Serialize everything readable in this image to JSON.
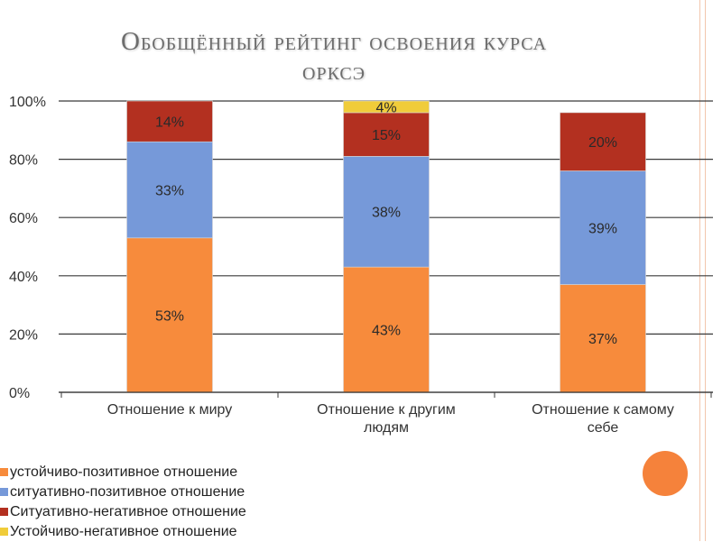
{
  "title": {
    "line1": "Обобщённый рейтинг освоения курса",
    "line2": "ОРКСЭ"
  },
  "colors": {
    "accent_circle": "#f5823b",
    "frame": "#f2c6ad"
  },
  "chart_data": {
    "type": "bar",
    "stacked": true,
    "title": "Обобщённый рейтинг освоения курса ОРКСЭ",
    "categories": [
      [
        "Отношение к миру"
      ],
      [
        "Отношение к другим",
        "людям"
      ],
      [
        "Отношение к самому",
        "себе"
      ]
    ],
    "series": [
      {
        "name": "устойчиво-позитивное отношение",
        "color": "#f78b3c",
        "values": [
          53,
          43,
          37
        ],
        "labels": [
          "53%",
          "43%",
          "37%"
        ]
      },
      {
        "name": "ситуативно-позитивное отношение",
        "color": "#7699d9",
        "values": [
          33,
          38,
          39
        ],
        "labels": [
          "33%",
          "38%",
          "39%"
        ]
      },
      {
        "name": "Ситуативно-негативное отношение",
        "color": "#b33020",
        "values": [
          14,
          15,
          20
        ],
        "labels": [
          "14%",
          "15%",
          "20%"
        ]
      },
      {
        "name": "Устойчиво-негативное отношение",
        "color": "#f0cc3a",
        "values": [
          0,
          4,
          0
        ],
        "labels": [
          "",
          "4%",
          ""
        ]
      }
    ],
    "yticks": [
      "0%",
      "20%",
      "40%",
      "60%",
      "80%",
      "100%"
    ],
    "ylim": [
      0,
      100
    ],
    "grid": true,
    "legend_position": "bottom-left"
  }
}
